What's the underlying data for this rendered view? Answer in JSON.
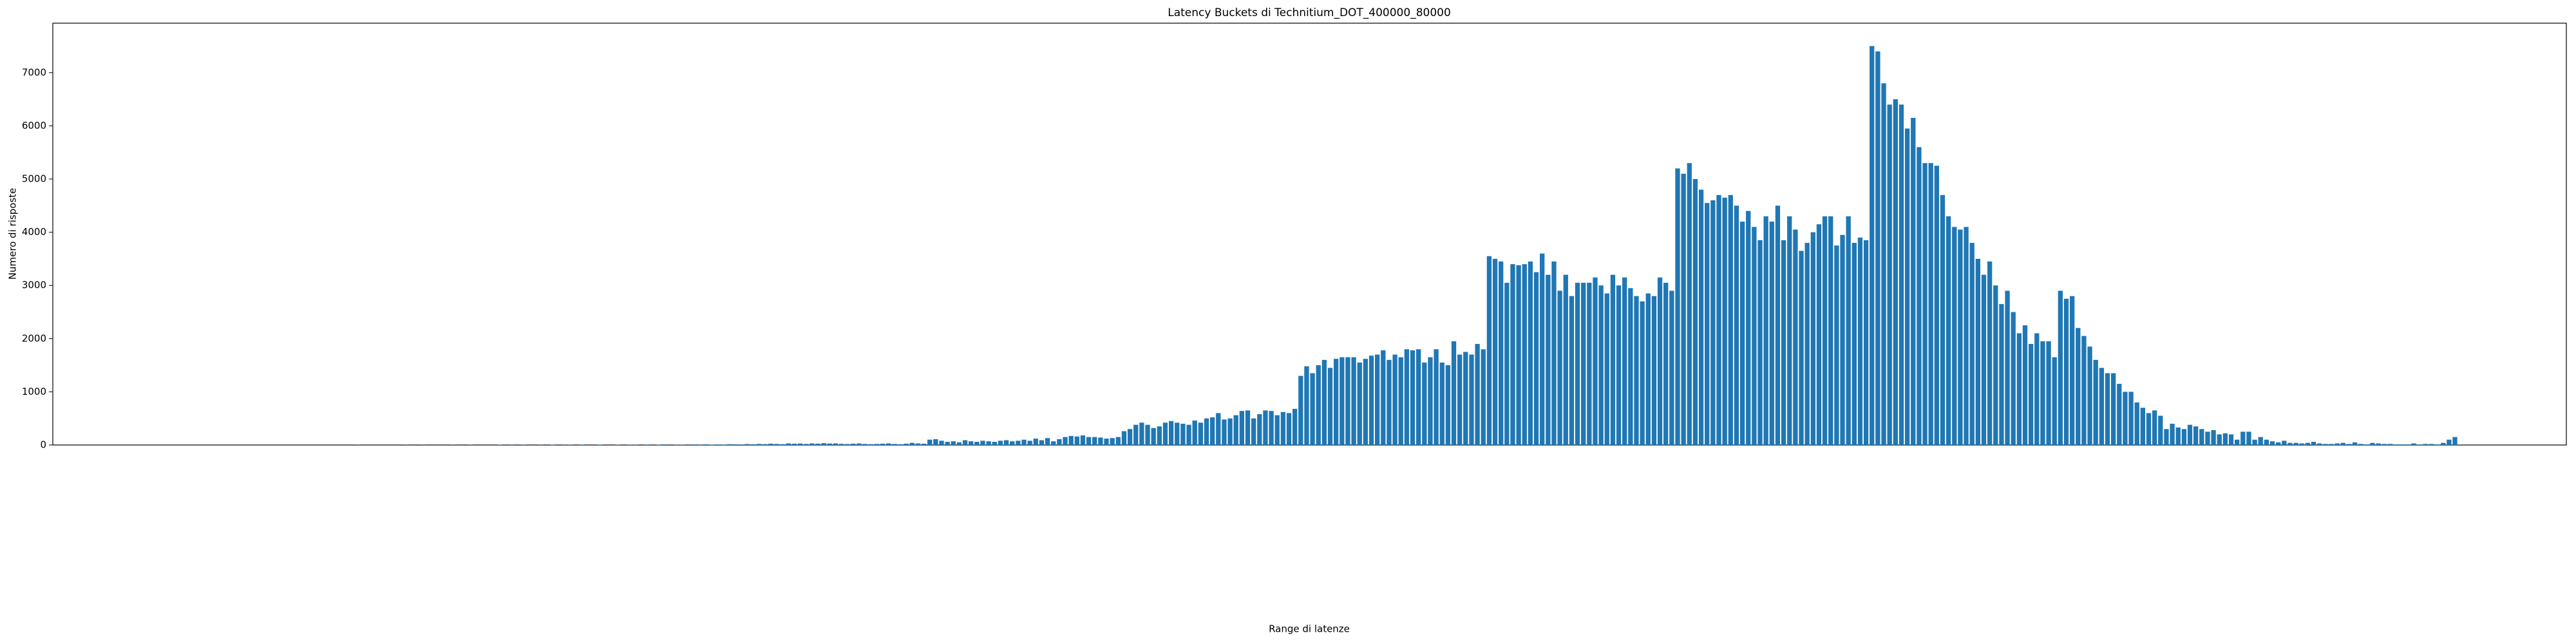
{
  "chart_data": {
    "type": "bar",
    "title": "Latency Buckets di Technitium_DOT_400000_80000",
    "x_label": "Range di latenze",
    "y_label": "Numero di risposte",
    "color": "#1f77b4",
    "grid": false,
    "categories": [
      null,
      null,
      null,
      null,
      null,
      null,
      null,
      null,
      null,
      null,
      null,
      null,
      null,
      null,
      null,
      null,
      null,
      null,
      null,
      null,
      null,
      null,
      null,
      null,
      null,
      null,
      null,
      null,
      null,
      null,
      null,
      null,
      null,
      null,
      null,
      null,
      null,
      null,
      null,
      null,
      null,
      null,
      null,
      null,
      null,
      null,
      null,
      null,
      null,
      null,
      null,
      null,
      null,
      null,
      null,
      null,
      null,
      null,
      null,
      null,
      null,
      null,
      null,
      null,
      null,
      null,
      null,
      null,
      null,
      null,
      null,
      null,
      null,
      null,
      null,
      null,
      null,
      null,
      null,
      null,
      null,
      null,
      null,
      null,
      null,
      null,
      null,
      null,
      null,
      null,
      null,
      null,
      null,
      null,
      null,
      null,
      null,
      null,
      null,
      null,
      null,
      null,
      null,
      null,
      null,
      null,
      null,
      null,
      null,
      null,
      null,
      null,
      null,
      null,
      null,
      null,
      null,
      null,
      null,
      null,
      null,
      null,
      null,
      null,
      null,
      null,
      null,
      null,
      null,
      null,
      null,
      null,
      null,
      null,
      null,
      null,
      null,
      null,
      null,
      null,
      null,
      null,
      null,
      null,
      null,
      null,
      null,
      null,
      null,
      null,
      null,
      null,
      null,
      null,
      null,
      null,
      null,
      null,
      null,
      null,
      null,
      null,
      null,
      null,
      null,
      null,
      null,
      null,
      null,
      null,
      null,
      null,
      null,
      null,
      null,
      null,
      null,
      null,
      null,
      null,
      null,
      null,
      null,
      null,
      null,
      null,
      null,
      null,
      null,
      null,
      null,
      null,
      null,
      null,
      null,
      null,
      null,
      null,
      null,
      null,
      null,
      null,
      null,
      null,
      null,
      null,
      null,
      null,
      null,
      null,
      null,
      null,
      null,
      null,
      null,
      null,
      null,
      null,
      null,
      null,
      null,
      null,
      null,
      null,
      null,
      null,
      null,
      null,
      null,
      null,
      null,
      null,
      null,
      null,
      null,
      null,
      null,
      null,
      null,
      null,
      null,
      null,
      null,
      null,
      null,
      null,
      null,
      null,
      null,
      null,
      null,
      null,
      null,
      null,
      null,
      null,
      null,
      null,
      null,
      null,
      null,
      null,
      null,
      null,
      null,
      null,
      null,
      null,
      null,
      null,
      null,
      null,
      null,
      null,
      null,
      null,
      null,
      null,
      null,
      null,
      null,
      null,
      null,
      null,
      null,
      null,
      null,
      null,
      null,
      null,
      null,
      null,
      null,
      null,
      null,
      null,
      null,
      null,
      null,
      null,
      null,
      null,
      null,
      null,
      null,
      null,
      null,
      null,
      null,
      null,
      null,
      null,
      null,
      null,
      null,
      null,
      null,
      null,
      null,
      null,
      null,
      null,
      null,
      null,
      null,
      null,
      null,
      null,
      null,
      null,
      null,
      null,
      null,
      null,
      null,
      null,
      null,
      null,
      null,
      null,
      null,
      null,
      null,
      null,
      null,
      null,
      null,
      null,
      null,
      null,
      null,
      null,
      null,
      null,
      null,
      null,
      null,
      null,
      null,
      null,
      null,
      null,
      null,
      null,
      null,
      null,
      null,
      null,
      null,
      null,
      null,
      null,
      null,
      null,
      null,
      null,
      null,
      null,
      null,
      null,
      null,
      null,
      null,
      null,
      null,
      null,
      null,
      null,
      null,
      null
    ],
    "values": [
      0,
      0,
      0,
      0,
      0,
      0,
      0,
      0,
      0,
      0,
      0,
      0,
      0,
      0,
      0,
      0,
      0,
      0,
      0,
      0,
      0,
      0,
      0,
      0,
      0,
      0,
      0,
      0,
      0,
      0,
      0,
      0,
      0,
      2,
      0,
      0,
      0,
      0,
      0,
      0,
      0,
      3,
      0,
      0,
      2,
      0,
      0,
      0,
      0,
      3,
      0,
      0,
      4,
      0,
      0,
      0,
      0,
      5,
      0,
      3,
      0,
      5,
      0,
      0,
      4,
      0,
      6,
      0,
      3,
      5,
      0,
      8,
      0,
      0,
      6,
      0,
      0,
      5,
      0,
      7,
      5,
      0,
      8,
      0,
      6,
      10,
      0,
      7,
      5,
      0,
      10,
      8,
      12,
      6,
      10,
      8,
      15,
      12,
      10,
      18,
      14,
      20,
      16,
      25,
      20,
      15,
      30,
      25,
      28,
      20,
      30,
      25,
      35,
      28,
      30,
      22,
      18,
      25,
      30,
      20,
      15,
      20,
      25,
      30,
      20,
      15,
      25,
      40,
      30,
      25,
      100,
      110,
      80,
      60,
      70,
      50,
      90,
      70,
      60,
      80,
      70,
      60,
      80,
      90,
      70,
      80,
      100,
      80,
      120,
      90,
      130,
      70,
      110,
      150,
      170,
      160,
      180,
      150,
      150,
      140,
      120,
      130,
      150,
      260,
      300,
      380,
      420,
      380,
      320,
      350,
      420,
      450,
      420,
      400,
      380,
      460,
      420,
      500,
      520,
      600,
      480,
      500,
      560,
      640,
      650,
      500,
      580,
      650,
      640,
      560,
      620,
      600,
      680,
      1300,
      1480,
      1350,
      1500,
      1600,
      1450,
      1620,
      1650,
      1650,
      1650,
      1550,
      1620,
      1680,
      1700,
      1780,
      1600,
      1700,
      1650,
      1800,
      1780,
      1800,
      1550,
      1650,
      1800,
      1550,
      1500,
      1950,
      1700,
      1750,
      1700,
      1900,
      1800,
      3550,
      3500,
      3450,
      3050,
      3400,
      3380,
      3400,
      3450,
      3250,
      3600,
      3200,
      3450,
      2900,
      3200,
      2800,
      3050,
      3050,
      3050,
      3150,
      3000,
      2850,
      3200,
      3000,
      3150,
      2950,
      2800,
      2700,
      2850,
      2800,
      3150,
      3050,
      2900,
      5200,
      5100,
      5300,
      5000,
      4800,
      4550,
      4600,
      4700,
      4650,
      4700,
      4500,
      4200,
      4400,
      4100,
      3850,
      4300,
      4200,
      4500,
      3850,
      4300,
      4050,
      3650,
      3800,
      4000,
      4150,
      4300,
      4300,
      3750,
      3950,
      4300,
      3800,
      3900,
      3850,
      7500,
      7400,
      6800,
      6400,
      6500,
      6400,
      5950,
      6150,
      5600,
      5300,
      5300,
      5250,
      4700,
      4300,
      4100,
      4050,
      4100,
      3800,
      3500,
      3200,
      3450,
      3000,
      2650,
      2900,
      2500,
      2100,
      2250,
      1900,
      2100,
      1950,
      1950,
      1650,
      2900,
      2750,
      2800,
      2200,
      2050,
      1850,
      1600,
      1450,
      1350,
      1350,
      1150,
      1000,
      1000,
      800,
      700,
      600,
      650,
      550,
      300,
      400,
      330,
      300,
      380,
      350,
      300,
      250,
      280,
      200,
      220,
      200,
      100,
      250,
      250,
      100,
      150,
      100,
      70,
      50,
      80,
      40,
      40,
      30,
      40,
      60,
      30,
      20,
      20,
      30,
      40,
      20,
      50,
      20,
      10,
      40,
      30,
      20,
      20,
      10,
      10,
      10,
      30,
      10,
      20,
      20,
      10,
      40,
      100,
      150
    ],
    "ylim": [
      0,
      7930
    ],
    "yticks": [
      0,
      1000,
      2000,
      3000,
      4000,
      5000,
      6000,
      7000
    ]
  }
}
